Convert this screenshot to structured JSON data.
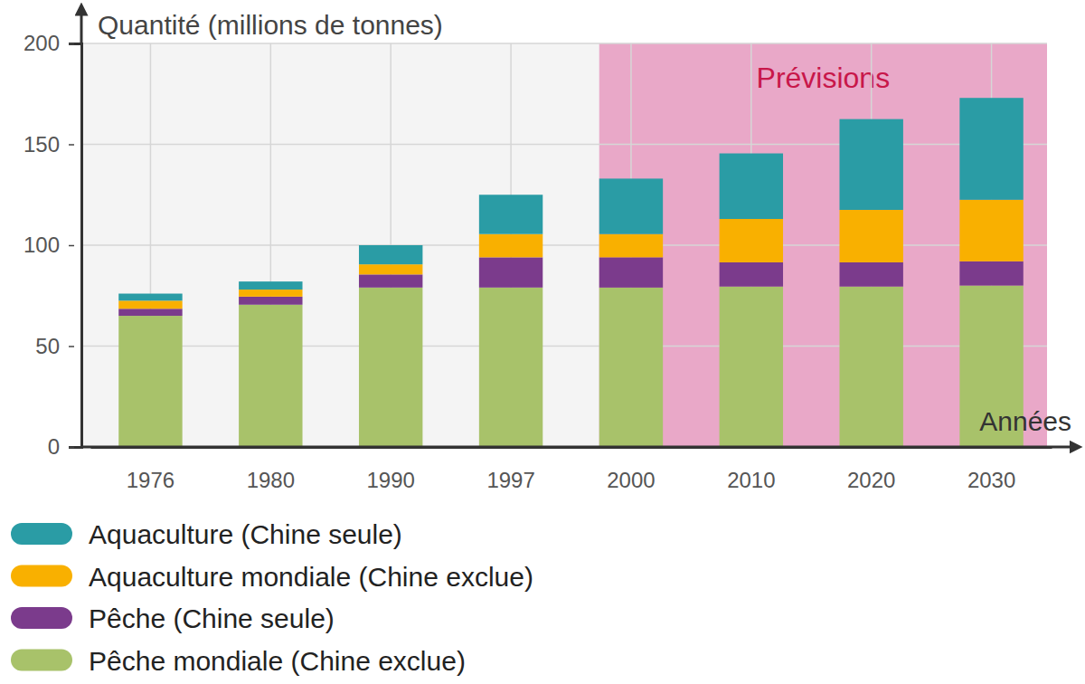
{
  "chart_data": {
    "type": "bar",
    "stacked": true,
    "grid": true,
    "legend": "bottom-left",
    "y_label": "Quantité (millions de tonnes)",
    "x_label": "Années",
    "categories": [
      "1976",
      "1980",
      "1990",
      "1997",
      "2000",
      "2010",
      "2020",
      "2030"
    ],
    "ylim": [
      0,
      200
    ],
    "yticks": [
      0,
      50,
      100,
      150,
      200
    ],
    "annotations": [
      {
        "text": "Prévisions",
        "from": "2000"
      }
    ],
    "series": [
      {
        "name": "Aquaculture (Chine seule)",
        "color": "#2a9ca5",
        "values": [
          3.5,
          4,
          9.5,
          19.5,
          27.5,
          32.5,
          45,
          50.5
        ]
      },
      {
        "name": "Aquaculture mondiale (Chine exclue)",
        "color": "#f9b000",
        "values": [
          4,
          3.5,
          5,
          11.5,
          11.5,
          21.5,
          26,
          30.5
        ]
      },
      {
        "name": "Pêche (Chine seule)",
        "color": "#7b3b8c",
        "values": [
          3.5,
          4,
          6.5,
          15,
          15,
          12,
          12,
          12
        ]
      },
      {
        "name": "Pêche mondiale (Chine exclue)",
        "color": "#a8c26a",
        "values": [
          65,
          70.5,
          79,
          79,
          79,
          79.5,
          79.5,
          80
        ]
      }
    ]
  }
}
